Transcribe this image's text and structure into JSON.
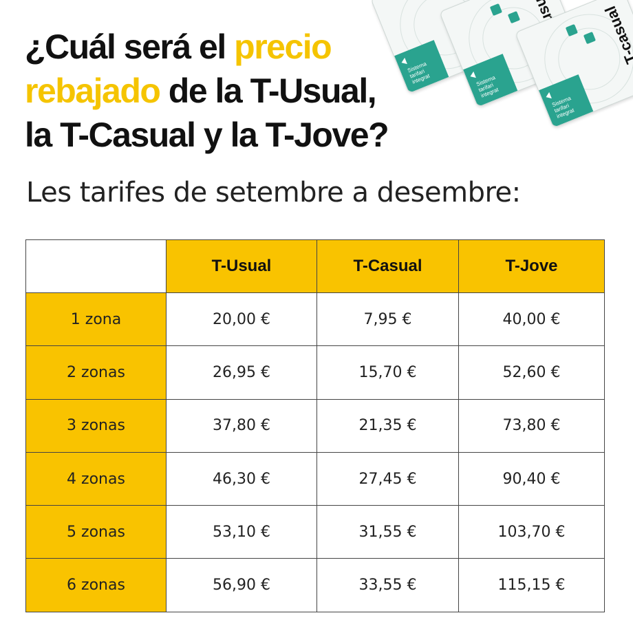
{
  "headline": {
    "line1_prefix": "¿Cuál será el ",
    "line1_highlight": "precio",
    "line2_highlight": "rebajado",
    "line2_suffix": " de la T-Usual,",
    "line3": "la T-Casual y la T-Jove?"
  },
  "subtitle": "Les tarifes de setembre a desembre:",
  "cards": [
    {
      "name": "",
      "label": "Sistema tarifari integrat"
    },
    {
      "name": "T-usual",
      "label": "Sistema tarifari integrat"
    },
    {
      "name": "T-casual",
      "label": "Sistema tarifari integrat"
    }
  ],
  "colors": {
    "accent": "#f9c300",
    "card_green": "#2aa38f",
    "text": "#111111"
  },
  "table": {
    "corner": "",
    "columns": [
      "T-Usual",
      "T-Casual",
      "T-Jove"
    ],
    "rows": [
      {
        "zone": "1 zona",
        "values": [
          "20,00 €",
          "7,95 €",
          "40,00 €"
        ]
      },
      {
        "zone": "2 zonas",
        "values": [
          "26,95 €",
          "15,70 €",
          "52,60 €"
        ]
      },
      {
        "zone": "3 zonas",
        "values": [
          "37,80 €",
          "21,35 €",
          "73,80 €"
        ]
      },
      {
        "zone": "4 zonas",
        "values": [
          "46,30 €",
          "27,45 €",
          "90,40 €"
        ]
      },
      {
        "zone": "5 zonas",
        "values": [
          "53,10 €",
          "31,55 €",
          "103,70 €"
        ]
      },
      {
        "zone": "6 zonas",
        "values": [
          "56,90 €",
          "33,55 €",
          "115,15 €"
        ]
      }
    ]
  }
}
